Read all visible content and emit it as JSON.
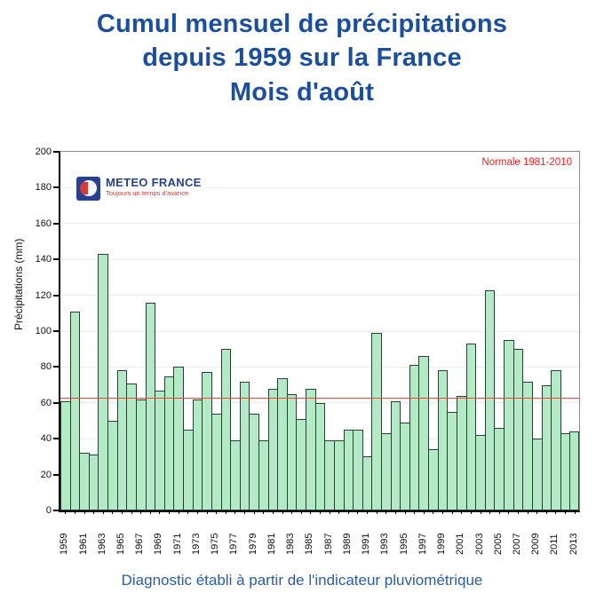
{
  "title": {
    "line1": "Cumul mensuel de précipitations",
    "line2": "depuis 1959 sur la France",
    "line3": "Mois d'août"
  },
  "logo": {
    "name": "METEO FRANCE",
    "tagline": "Toujours un temps d'avance"
  },
  "legend": {
    "normale_label": "Normale 1981-2010"
  },
  "caption": "Diagnostic établi à partir de l'indicateur pluviométrique",
  "colors": {
    "title_blue": "#1b4f9e",
    "caption_blue": "#2a5da8",
    "bar_fill": "#b4e9c5",
    "bar_border": "#234134",
    "normale_red": "#ee4433",
    "legend_red": "#ff1a1a",
    "logo_blue": "#28418f",
    "logo_red": "#e23333"
  },
  "chart_data": {
    "type": "bar",
    "title": "Cumul mensuel de précipitations depuis 1959 sur la France — Mois d'août",
    "xlabel": "",
    "ylabel": "Précipitations (mm)",
    "ylim": [
      0,
      200
    ],
    "ytick_step": 20,
    "yticks": [
      0,
      20,
      40,
      60,
      80,
      100,
      120,
      140,
      160,
      180,
      200
    ],
    "grid": true,
    "legend_position": "top-right",
    "normale_1981_2010": 63,
    "categories": [
      1959,
      1960,
      1961,
      1962,
      1963,
      1964,
      1965,
      1966,
      1967,
      1968,
      1969,
      1970,
      1971,
      1972,
      1973,
      1974,
      1975,
      1976,
      1977,
      1978,
      1979,
      1980,
      1981,
      1982,
      1983,
      1984,
      1985,
      1986,
      1987,
      1988,
      1989,
      1990,
      1991,
      1992,
      1993,
      1994,
      1995,
      1996,
      1997,
      1998,
      1999,
      2000,
      2001,
      2002,
      2003,
      2004,
      2005,
      2006,
      2007,
      2008,
      2009,
      2010,
      2011,
      2012,
      2013
    ],
    "values": [
      61,
      111,
      32,
      31,
      143,
      50,
      78,
      71,
      62,
      116,
      67,
      75,
      80,
      45,
      62,
      77,
      54,
      90,
      39,
      72,
      54,
      39,
      68,
      74,
      65,
      51,
      68,
      60,
      39,
      39,
      45,
      45,
      30,
      99,
      43,
      61,
      49,
      81,
      86,
      34,
      78,
      55,
      64,
      93,
      42,
      123,
      46,
      95,
      90,
      72,
      40,
      70,
      78,
      43,
      44
    ],
    "xtick_label_every": 2
  }
}
